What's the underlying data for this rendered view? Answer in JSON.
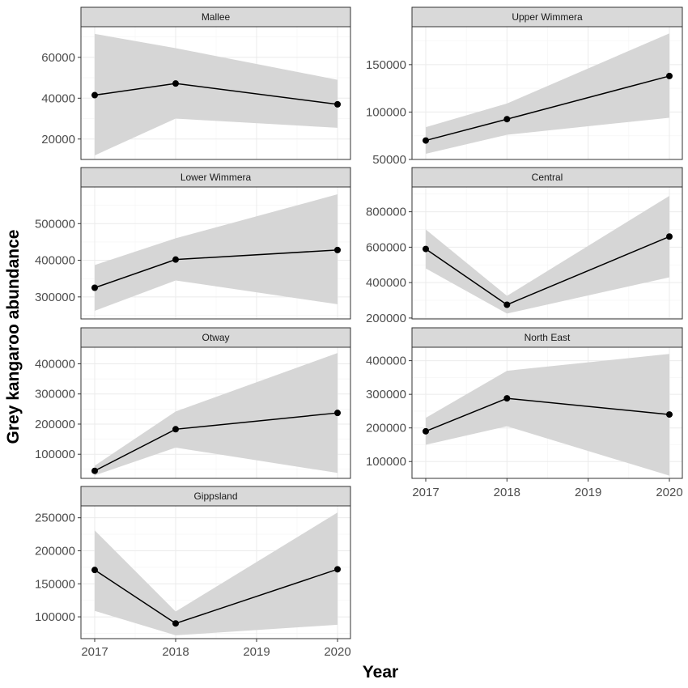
{
  "chart_data": {
    "type": "line",
    "xlabel": "Year",
    "ylabel": "Grey kangaroo abundance",
    "x_ticks": [
      "2017",
      "2018",
      "2019",
      "2020"
    ],
    "xlim": [
      2017,
      2020
    ],
    "grid": true,
    "ribbon": "confidence band (grey)",
    "panels": [
      {
        "title": "Mallee",
        "x": [
          2017,
          2018,
          2020
        ],
        "values": [
          41500,
          47200,
          37000
        ],
        "lower": [
          12000,
          30000,
          25500
        ],
        "upper": [
          71500,
          64500,
          49000
        ],
        "ylim": [
          10000,
          75000
        ],
        "y_ticks": [
          20000,
          40000,
          60000
        ],
        "y_tick_labels": [
          "20000",
          "40000",
          "60000"
        ]
      },
      {
        "title": "Upper Wimmera",
        "x": [
          2017,
          2018,
          2020
        ],
        "values": [
          70000,
          92500,
          138000
        ],
        "lower": [
          56000,
          76000,
          94000
        ],
        "upper": [
          84000,
          109000,
          183000
        ],
        "ylim": [
          50000,
          190000
        ],
        "y_ticks": [
          50000,
          100000,
          150000
        ],
        "y_tick_labels": [
          "50000",
          "100000",
          "150000"
        ]
      },
      {
        "title": "Lower Wimmera",
        "x": [
          2017,
          2018,
          2020
        ],
        "values": [
          325000,
          402000,
          428000
        ],
        "lower": [
          262000,
          345000,
          280000
        ],
        "upper": [
          387000,
          460000,
          580000
        ],
        "ylim": [
          240000,
          600000
        ],
        "y_ticks": [
          300000,
          400000,
          500000
        ],
        "y_tick_labels": [
          "300000",
          "400000",
          "500000"
        ]
      },
      {
        "title": "Central",
        "x": [
          2017,
          2018,
          2020
        ],
        "values": [
          590000,
          275000,
          660000
        ],
        "lower": [
          480000,
          225000,
          430000
        ],
        "upper": [
          700000,
          325000,
          890000
        ],
        "ylim": [
          195000,
          940000
        ],
        "y_ticks": [
          200000,
          400000,
          600000,
          800000
        ],
        "y_tick_labels": [
          "200000",
          "400000",
          "600000",
          "800000"
        ]
      },
      {
        "title": "Otway",
        "x": [
          2017,
          2018,
          2020
        ],
        "values": [
          45000,
          183000,
          237000
        ],
        "lower": [
          30000,
          122000,
          38000
        ],
        "upper": [
          62000,
          242000,
          436000
        ],
        "ylim": [
          20000,
          455000
        ],
        "y_ticks": [
          100000,
          200000,
          300000,
          400000
        ],
        "y_tick_labels": [
          "100000",
          "200000",
          "300000",
          "400000"
        ]
      },
      {
        "title": "North East",
        "x": [
          2017,
          2018,
          2020
        ],
        "values": [
          190000,
          288000,
          240000
        ],
        "lower": [
          150000,
          205000,
          58000
        ],
        "upper": [
          230000,
          370000,
          420000
        ],
        "ylim": [
          50000,
          440000
        ],
        "y_ticks": [
          100000,
          200000,
          300000,
          400000
        ],
        "y_tick_labels": [
          "100000",
          "200000",
          "300000",
          "400000"
        ]
      },
      {
        "title": "Gippsland",
        "x": [
          2017,
          2018,
          2020
        ],
        "values": [
          171000,
          90000,
          172000
        ],
        "lower": [
          109000,
          72000,
          88000
        ],
        "upper": [
          231000,
          108000,
          258000
        ],
        "ylim": [
          67000,
          268000
        ],
        "y_ticks": [
          100000,
          150000,
          200000,
          250000
        ],
        "y_tick_labels": [
          "100000",
          "150000",
          "200000",
          "250000"
        ]
      }
    ]
  },
  "colors": {
    "ribbon": "#d6d6d6",
    "line": "#000000",
    "strip": "#d9d9d9",
    "grid": "#ebebeb"
  }
}
